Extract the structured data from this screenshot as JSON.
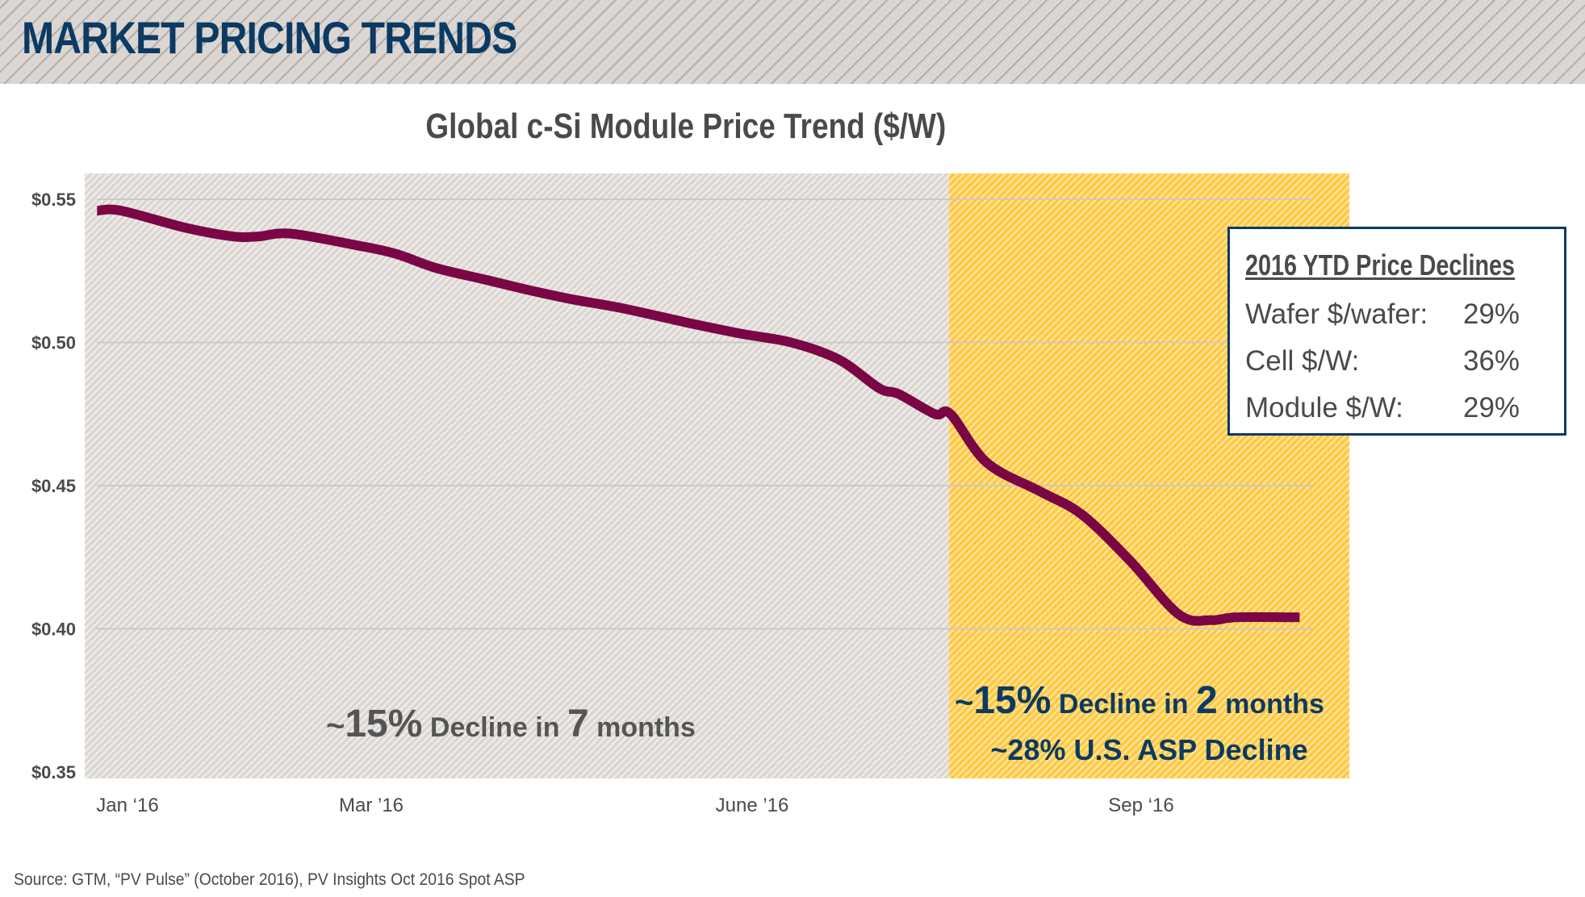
{
  "header": {
    "title": "MARKET PRICING TRENDS"
  },
  "chart_data": {
    "type": "line",
    "title": "Global c-Si Module Price Trend ($/W)",
    "xlabel": "",
    "ylabel": "",
    "x_unit": "months since Jan 2016",
    "ylim": [
      0.35,
      0.55
    ],
    "yticks": [
      0.55,
      0.5,
      0.45,
      0.4,
      0.35
    ],
    "ytick_labels": [
      "$0.55",
      "$0.50",
      "$0.45",
      "$0.40",
      "$0.35"
    ],
    "xticks": [
      {
        "x": 0,
        "label": "Jan ‘16"
      },
      {
        "x": 2,
        "label": "Mar ’16"
      },
      {
        "x": 5,
        "label": "June ’16"
      },
      {
        "x": 8,
        "label": "Sep ‘16"
      }
    ],
    "grid": true,
    "series": [
      {
        "name": "Global c-Si Module Price",
        "color": "#7a0646",
        "points": [
          [
            -0.25,
            0.546
          ],
          [
            -0.05,
            0.546
          ],
          [
            0.48,
            0.54
          ],
          [
            0.87,
            0.537
          ],
          [
            1.07,
            0.537
          ],
          [
            1.34,
            0.538
          ],
          [
            1.87,
            0.534
          ],
          [
            2.19,
            0.531
          ],
          [
            2.51,
            0.526
          ],
          [
            2.89,
            0.522
          ],
          [
            3.27,
            0.518
          ],
          [
            3.59,
            0.515
          ],
          [
            3.97,
            0.512
          ],
          [
            4.48,
            0.507
          ],
          [
            4.92,
            0.503
          ],
          [
            5.3,
            0.5
          ],
          [
            5.67,
            0.494
          ],
          [
            5.98,
            0.484
          ],
          [
            6.13,
            0.482
          ],
          [
            6.41,
            0.475
          ],
          [
            6.53,
            0.475
          ],
          [
            6.81,
            0.458
          ],
          [
            7.22,
            0.448
          ],
          [
            7.54,
            0.44
          ],
          [
            7.91,
            0.424
          ],
          [
            8.29,
            0.405
          ],
          [
            8.54,
            0.403
          ],
          [
            8.73,
            0.404
          ],
          [
            9.22,
            0.404
          ]
        ]
      }
    ],
    "regions": [
      {
        "name": "earlier-period",
        "x_start": -0.35,
        "x_end": 6.52,
        "color": "#dbd6d2",
        "stripe": "#efece9"
      },
      {
        "name": "recent-period",
        "x_start": 6.52,
        "x_end": 9.6,
        "color": "#ffc840",
        "stripe": "#ffe39a"
      }
    ],
    "annotations": [
      {
        "name": "annotation-7-months",
        "parts": [
          "~",
          "15%",
          " Decline in ",
          "7",
          " months"
        ],
        "color": "#555555"
      },
      {
        "name": "annotation-2-months",
        "parts": [
          "~",
          "15%",
          " Decline in ",
          "2",
          " months"
        ],
        "color": "#0b3a63"
      },
      {
        "name": "annotation-us-asp",
        "text": "~28% U.S. ASP Decline",
        "color": "#0b3a63"
      }
    ]
  },
  "info_box": {
    "title": "2016 YTD Price Declines",
    "rows": [
      {
        "label": "Wafer $/wafer:",
        "value": "29%"
      },
      {
        "label": "Cell $/W:",
        "value": "36%"
      },
      {
        "label": "Module $/W:",
        "value": "29%"
      }
    ]
  },
  "footer": {
    "source": "Source: GTM, “PV Pulse” (October 2016), PV Insights Oct 2016 Spot ASP"
  }
}
